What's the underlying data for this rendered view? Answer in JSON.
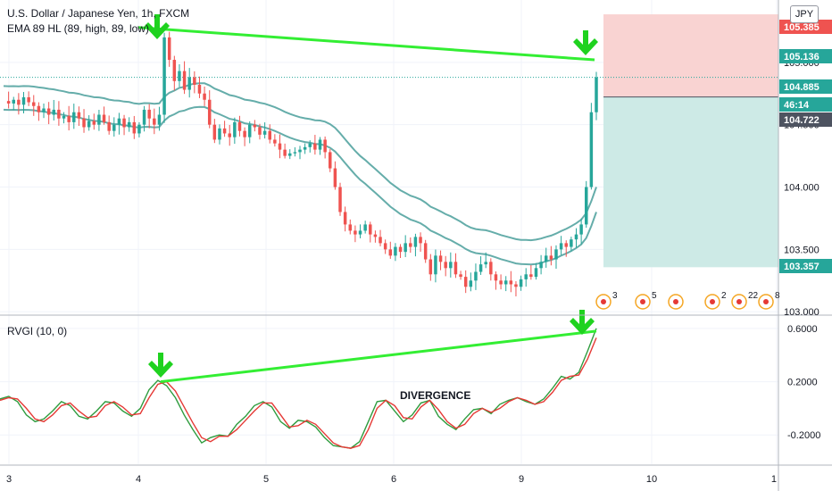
{
  "legend": {
    "title": "U.S. Dollar / Japanese Yen, 1h, FXCM",
    "indicator": "EMA 89 HL (89, high, 89, low)",
    "oscillator": "RVGI (10, 0)"
  },
  "currency_badge": "JPY",
  "annotation": "DIVERGENCE",
  "colors": {
    "up": "#26a69a",
    "down": "#ef5350",
    "ema": "#4a9f9b",
    "trendline": "#33ee33",
    "rvgi": "#2e9c3e",
    "signal": "#e53935",
    "stop_zone": "#f9d3d2",
    "target_zone": "#cdeae6"
  },
  "price_tags": [
    {
      "label": "105.385",
      "color": "#ef5350"
    },
    {
      "label": "105.136",
      "color": "#26a69a"
    },
    {
      "label": "104.885",
      "color": "#26a69a"
    },
    {
      "label": "46:14",
      "color": "#26a69a"
    },
    {
      "label": "104.722",
      "color": "#4d5360"
    },
    {
      "label": "103.357",
      "color": "#26a69a"
    }
  ],
  "event_markers": [
    "3",
    "5",
    "",
    "2",
    "22",
    "8"
  ],
  "chart_data": [
    {
      "type": "candlestick",
      "title": "U.S. Dollar / Japanese Yen, 1h, FXCM",
      "x_ticks": [
        "3",
        "4",
        "5",
        "6",
        "9",
        "10",
        "1"
      ],
      "y_ticks": [
        "103.000",
        "103.500",
        "104.000",
        "104.500",
        "105.000"
      ],
      "ylim": [
        102.98,
        105.5
      ],
      "price_path": [
        104.69,
        104.67,
        104.7,
        104.66,
        104.72,
        104.68,
        104.65,
        104.6,
        104.63,
        104.58,
        104.62,
        104.55,
        104.57,
        104.52,
        104.6,
        104.55,
        104.48,
        104.53,
        104.5,
        104.58,
        104.52,
        104.45,
        104.5,
        104.55,
        104.48,
        104.52,
        104.43,
        104.5,
        104.62,
        104.55,
        104.5,
        104.58,
        105.2,
        105.02,
        104.85,
        104.93,
        104.78,
        104.88,
        104.82,
        104.75,
        104.7,
        104.5,
        104.38,
        104.47,
        104.43,
        104.4,
        104.52,
        104.45,
        104.4,
        104.5,
        104.48,
        104.42,
        104.45,
        104.38,
        104.35,
        104.3,
        104.25,
        104.27,
        104.28,
        104.3,
        104.32,
        104.35,
        104.3,
        104.38,
        104.28,
        104.15,
        104.0,
        103.8,
        103.7,
        103.65,
        103.62,
        103.65,
        103.7,
        103.62,
        103.6,
        103.55,
        103.5,
        103.45,
        103.52,
        103.48,
        103.55,
        103.52,
        103.6,
        103.55,
        103.42,
        103.3,
        103.45,
        103.4,
        103.35,
        103.4,
        103.3,
        103.28,
        103.2,
        103.25,
        103.32,
        103.38,
        103.4,
        103.3,
        103.25,
        103.22,
        103.25,
        103.22,
        103.2,
        103.26,
        103.3,
        103.28,
        103.35,
        103.4,
        103.45,
        103.42,
        103.5,
        103.55,
        103.52,
        103.58,
        103.62,
        103.7,
        104.0,
        104.6,
        104.88
      ],
      "ema_high_end": 104.0,
      "ema_low_end": 103.8,
      "trendline": {
        "from": 105.28,
        "to": 105.02
      },
      "position": {
        "entry": 104.722,
        "stop": 105.385,
        "target": 103.357
      }
    },
    {
      "type": "line",
      "title": "RVGI (10, 0)",
      "y_ticks": [
        "0.6000",
        "0.2000",
        "-0.2000"
      ],
      "ylim": [
        -0.42,
        0.68
      ],
      "series": [
        {
          "values": [
            0.07,
            0.09,
            0.05,
            -0.05,
            -0.1,
            -0.08,
            -0.02,
            0.05,
            0.02,
            -0.06,
            -0.08,
            -0.02,
            0.05,
            0.04,
            -0.02,
            -0.06,
            0.0,
            0.14,
            0.21,
            0.17,
            0.08,
            -0.05,
            -0.16,
            -0.26,
            -0.22,
            -0.2,
            -0.21,
            -0.12,
            -0.06,
            0.02,
            0.05,
            0.01,
            -0.1,
            -0.15,
            -0.09,
            -0.1,
            -0.14,
            -0.22,
            -0.28,
            -0.29,
            -0.3,
            -0.25,
            -0.1,
            0.05,
            0.06,
            -0.02,
            -0.1,
            -0.05,
            0.04,
            0.06,
            -0.06,
            -0.12,
            -0.16,
            -0.08,
            -0.01,
            0.0,
            -0.04,
            0.03,
            0.06,
            0.08,
            0.05,
            0.03,
            0.07,
            0.15,
            0.24,
            0.22,
            0.27,
            0.43,
            0.6
          ]
        },
        {
          "values": [
            0.06,
            0.08,
            0.07,
            0.0,
            -0.08,
            -0.1,
            -0.05,
            0.02,
            0.04,
            -0.02,
            -0.07,
            -0.06,
            0.02,
            0.05,
            0.01,
            -0.05,
            -0.04,
            0.08,
            0.18,
            0.2,
            0.13,
            0.01,
            -0.11,
            -0.22,
            -0.25,
            -0.21,
            -0.21,
            -0.16,
            -0.09,
            -0.02,
            0.04,
            0.04,
            -0.05,
            -0.14,
            -0.13,
            -0.09,
            -0.12,
            -0.19,
            -0.26,
            -0.29,
            -0.3,
            -0.28,
            -0.16,
            0.0,
            0.06,
            0.02,
            -0.07,
            -0.08,
            0.01,
            0.06,
            -0.01,
            -0.1,
            -0.15,
            -0.12,
            -0.04,
            0.0,
            -0.03,
            0.0,
            0.05,
            0.08,
            0.06,
            0.03,
            0.05,
            0.12,
            0.21,
            0.24,
            0.25,
            0.37,
            0.53
          ]
        }
      ],
      "trendline": {
        "from": 0.2,
        "to": 0.58
      }
    }
  ]
}
